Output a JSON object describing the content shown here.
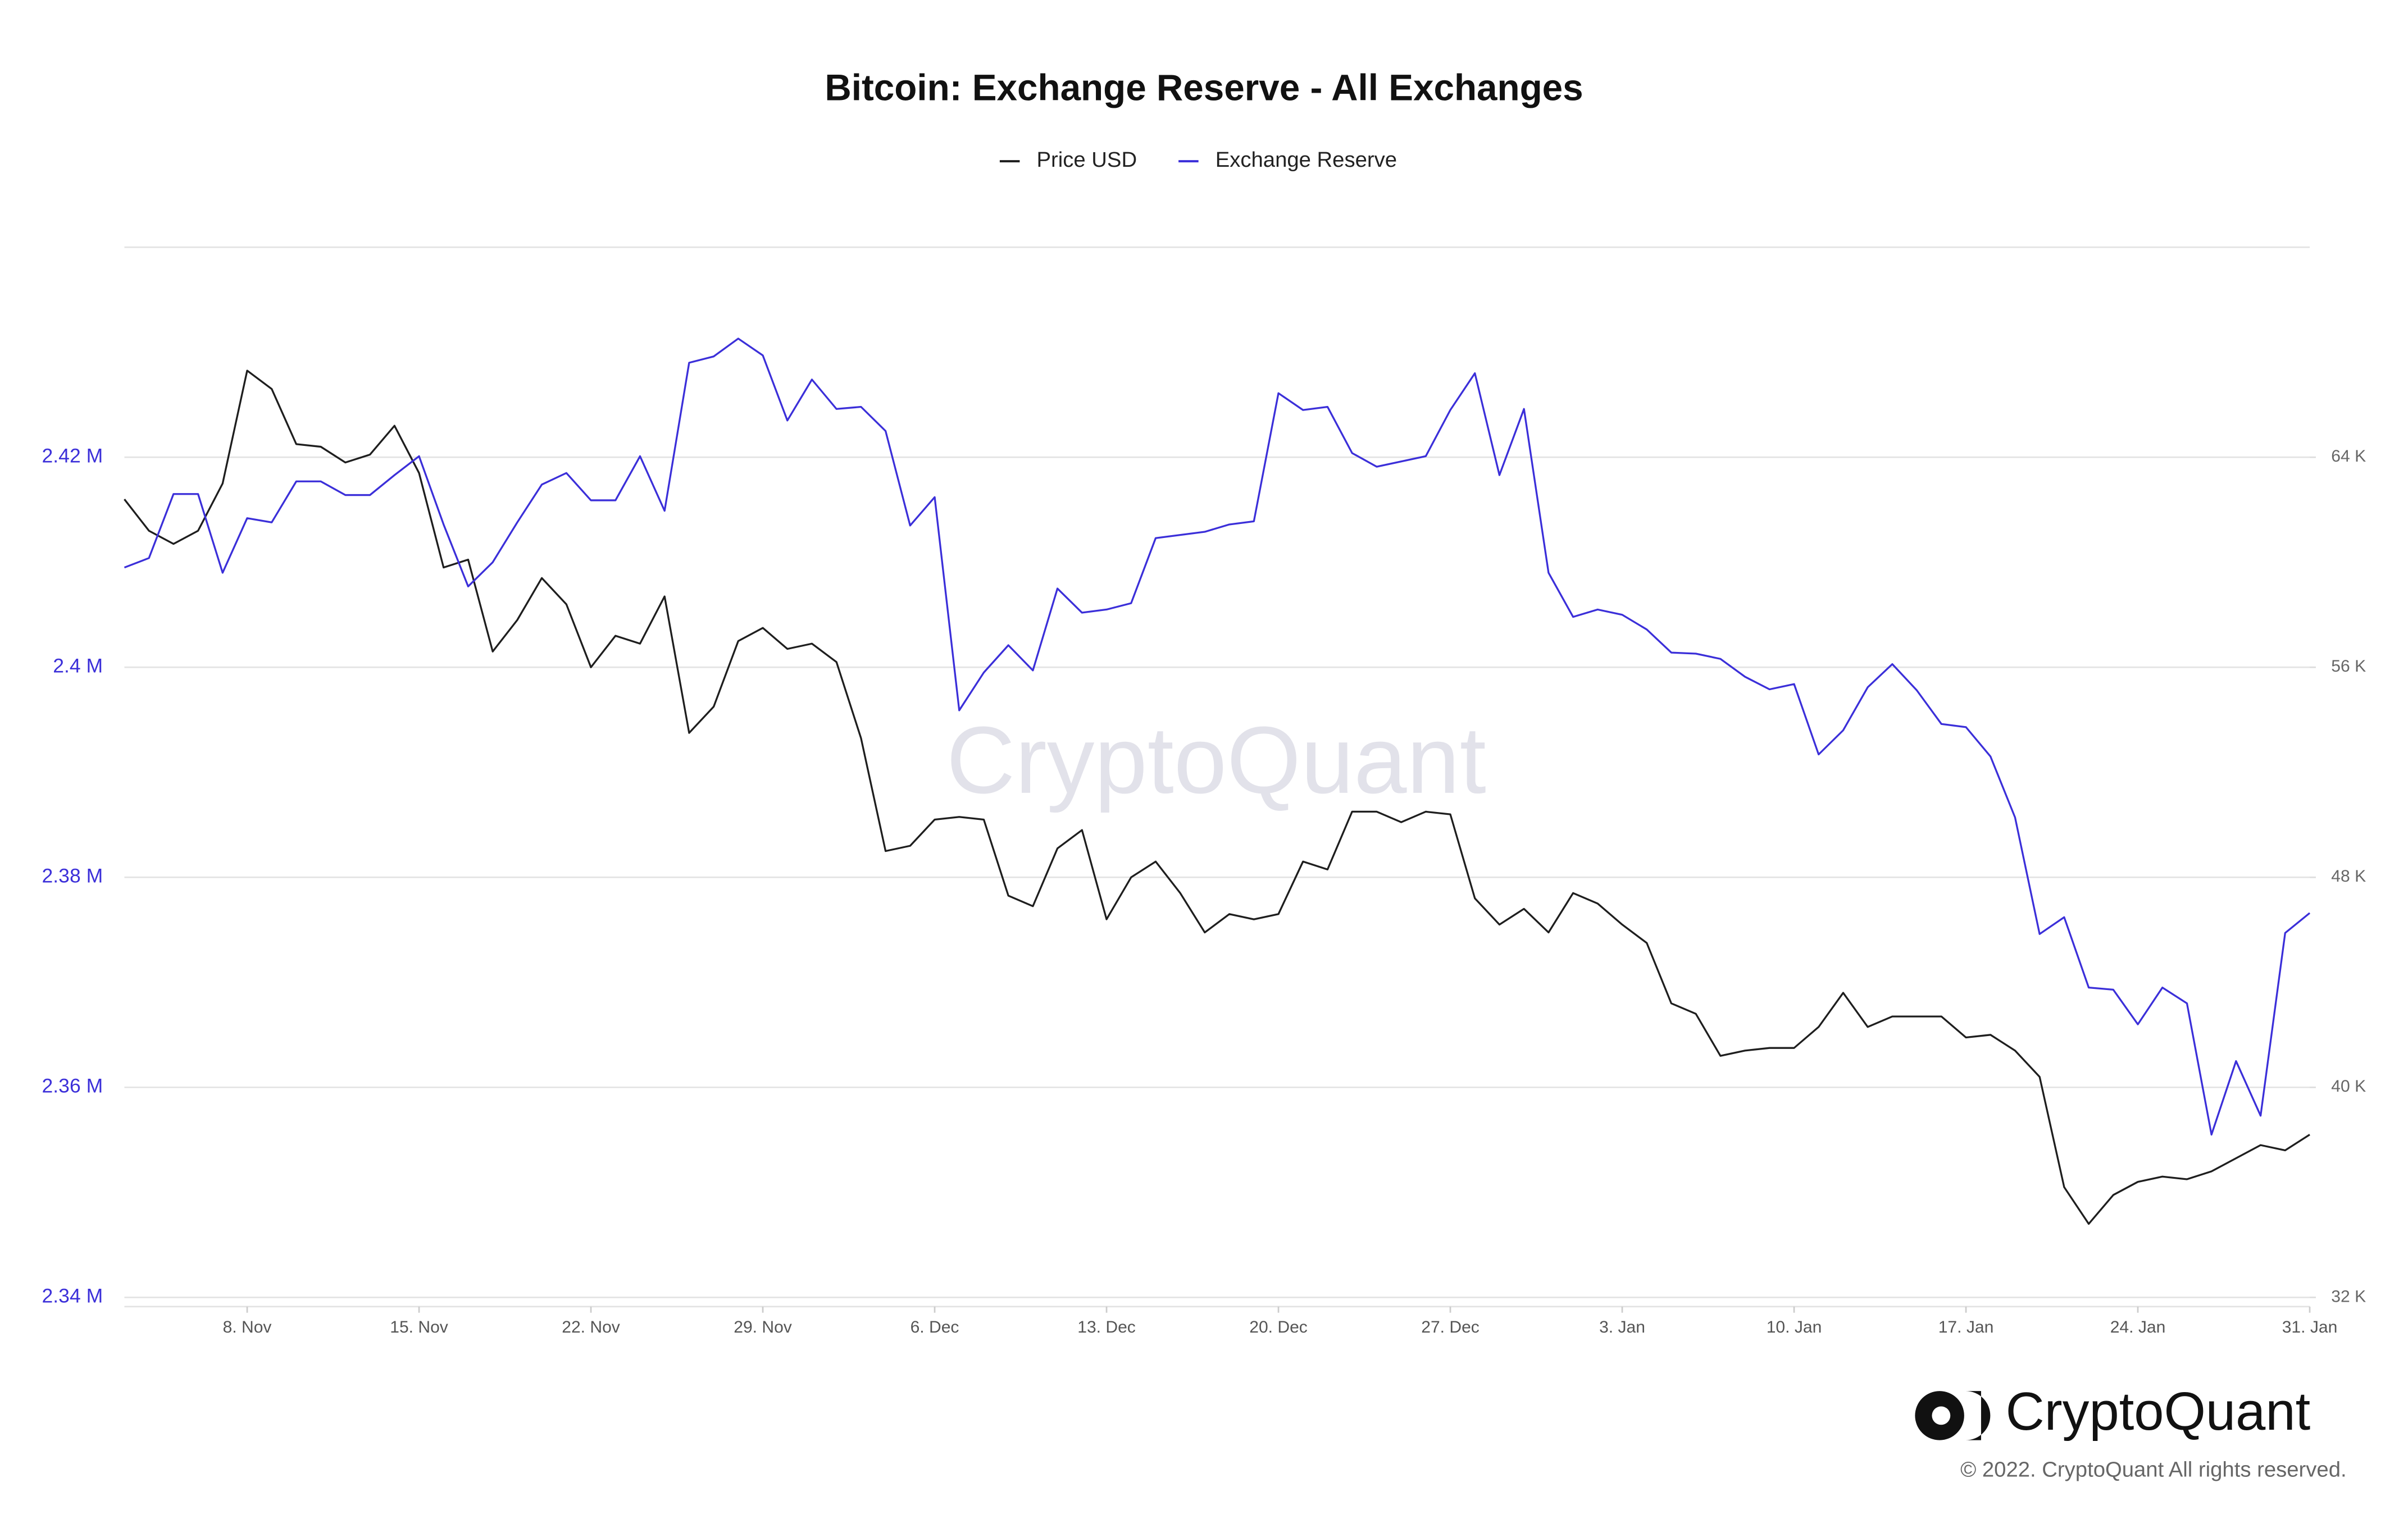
{
  "chart_data": {
    "type": "line",
    "title": "Bitcoin: Exchange Reserve - All Exchanges",
    "categories": [
      "3. Nov",
      "4. Nov",
      "5. Nov",
      "6. Nov",
      "7. Nov",
      "8. Nov",
      "9. Nov",
      "10. Nov",
      "11. Nov",
      "12. Nov",
      "13. Nov",
      "14. Nov",
      "15. Nov",
      "16. Nov",
      "17. Nov",
      "18. Nov",
      "19. Nov",
      "20. Nov",
      "21. Nov",
      "22. Nov",
      "23. Nov",
      "24. Nov",
      "25. Nov",
      "26. Nov",
      "27. Nov",
      "28. Nov",
      "29. Nov",
      "30. Nov",
      "1. Dec",
      "2. Dec",
      "3. Dec",
      "4. Dec",
      "5. Dec",
      "6. Dec",
      "7. Dec",
      "8. Dec",
      "9. Dec",
      "10. Dec",
      "11. Dec",
      "12. Dec",
      "13. Dec",
      "14. Dec",
      "15. Dec",
      "16. Dec",
      "17. Dec",
      "18. Dec",
      "19. Dec",
      "20. Dec",
      "21. Dec",
      "22. Dec",
      "23. Dec",
      "24. Dec",
      "25. Dec",
      "26. Dec",
      "27. Dec",
      "28. Dec",
      "29. Dec",
      "30. Dec",
      "31. Dec",
      "1. Jan",
      "2. Jan",
      "3. Jan",
      "4. Jan",
      "5. Jan",
      "6. Jan",
      "7. Jan",
      "8. Jan",
      "9. Jan",
      "10. Jan",
      "11. Jan",
      "12. Jan",
      "13. Jan",
      "14. Jan",
      "15. Jan",
      "16. Jan",
      "17. Jan",
      "18. Jan",
      "19. Jan",
      "20. Jan",
      "21. Jan",
      "22. Jan",
      "23. Jan",
      "24. Jan",
      "25. Jan",
      "26. Jan",
      "27. Jan",
      "28. Jan",
      "29. Jan",
      "30. Jan",
      "31. Jan"
    ],
    "xticks": [
      "8. Nov",
      "15. Nov",
      "22. Nov",
      "29. Nov",
      "6. Dec",
      "13. Dec",
      "20. Dec",
      "27. Dec",
      "3. Jan",
      "10. Jan",
      "17. Jan",
      "24. Jan",
      "31. Jan"
    ],
    "series": [
      {
        "name": "Price USD",
        "color": "#1e1e1e",
        "axis": "y2",
        "values": [
          62400,
          61200,
          60700,
          61200,
          63000,
          67300,
          66600,
          64500,
          64400,
          63800,
          64100,
          65200,
          63400,
          59800,
          60100,
          56600,
          57800,
          59400,
          58400,
          56000,
          57200,
          56900,
          58700,
          53500,
          54500,
          57000,
          57500,
          56700,
          56900,
          56200,
          53300,
          49000,
          49200,
          50200,
          50300,
          50200,
          47300,
          46900,
          49100,
          49800,
          46400,
          48000,
          48600,
          47400,
          45900,
          46600,
          46400,
          46600,
          48600,
          48300,
          50500,
          50500,
          50100,
          50500,
          50400,
          47200,
          46200,
          46800,
          45900,
          47400,
          47000,
          46200,
          45500,
          43200,
          42800,
          41200,
          41400,
          41500,
          41500,
          42300,
          43600,
          42300,
          42700,
          42700,
          42700,
          41900,
          42000,
          41400,
          40400,
          36200,
          34800,
          35900,
          36400,
          36600,
          36500,
          36800,
          37300,
          37800,
          37600,
          38200
        ]
      },
      {
        "name": "Exchange Reserve",
        "color": "#3b2fd9",
        "values": [
          2409500,
          2410400,
          2416500,
          2416500,
          2409000,
          2414200,
          2413800,
          2417700,
          2417700,
          2416400,
          2416400,
          2418300,
          2420100,
          2413600,
          2407700,
          2410000,
          2413800,
          2417400,
          2418500,
          2415900,
          2415900,
          2420100,
          2414900,
          2429000,
          2429600,
          2431300,
          2429700,
          2423500,
          2427400,
          2424600,
          2424800,
          2422500,
          2413500,
          2416200,
          2395900,
          2399500,
          2402100,
          2399700,
          2407500,
          2405200,
          2405500,
          2406100,
          2412300,
          2412600,
          2412900,
          2413600,
          2413900,
          2426100,
          2424500,
          2424800,
          2420400,
          2419100,
          2419600,
          2420100,
          2424500,
          2428000,
          2418300,
          2424600,
          2409000,
          2404800,
          2405500,
          2405000,
          2403600,
          2401400,
          2401300,
          2400800,
          2399100,
          2397900,
          2398400,
          2391700,
          2394000,
          2398100,
          2400300,
          2397800,
          2394600,
          2394300,
          2391500,
          2385700,
          2374600,
          2376200,
          2369500,
          2369300,
          2366000,
          2369500,
          2368000,
          2355500,
          2362500,
          2357300,
          2374700,
          2376600
        ]
      }
    ],
    "ylim": [
      2340000,
      2440000
    ],
    "yticks": [
      {
        "value": 2340000,
        "label": "2.34 M"
      },
      {
        "value": 2360000,
        "label": "2.36 M"
      },
      {
        "value": 2380000,
        "label": "2.38 M"
      },
      {
        "value": 2400000,
        "label": "2.4 M"
      },
      {
        "value": 2420000,
        "label": "2.42 M"
      }
    ],
    "y2lim": [
      32000,
      72000
    ],
    "y2ticks": [
      {
        "value": 32000,
        "label": "32 K"
      },
      {
        "value": 40000,
        "label": "40 K"
      },
      {
        "value": 48000,
        "label": "48 K"
      },
      {
        "value": 56000,
        "label": "56 K"
      },
      {
        "value": 64000,
        "label": "64 K"
      }
    ],
    "grid": true,
    "legend": "top",
    "watermark": "CryptoQuant",
    "logo_text": "CryptoQuant",
    "copyright": "© 2022. CryptoQuant All rights reserved."
  }
}
